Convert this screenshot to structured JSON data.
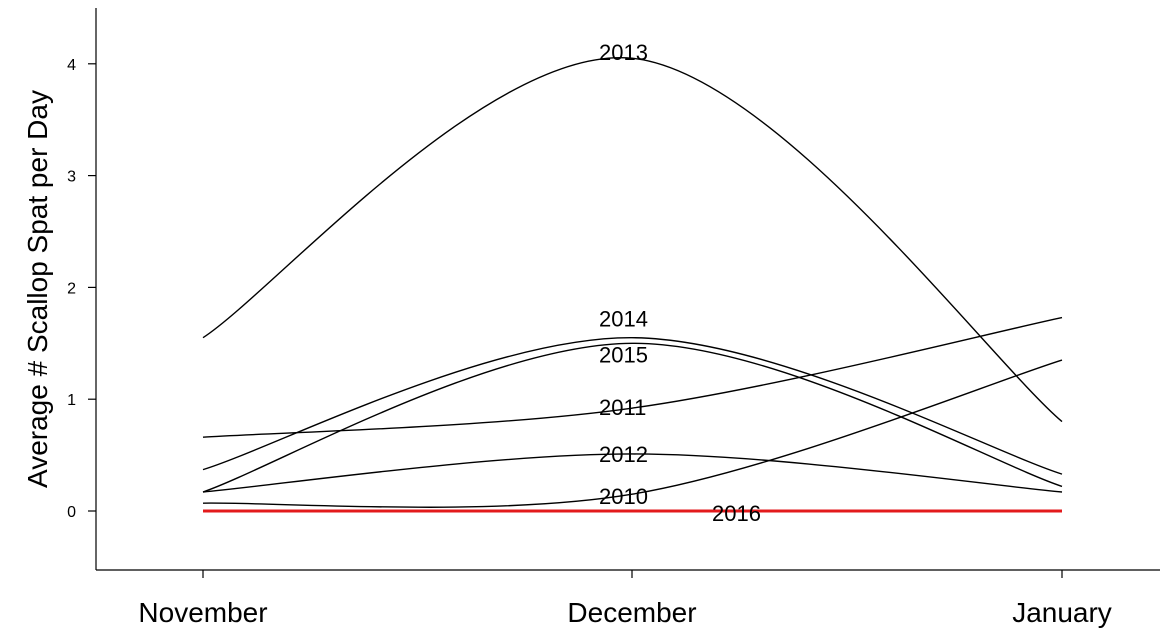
{
  "chart_data": {
    "type": "line",
    "title": "",
    "xlabel": "",
    "ylabel": "Average # Scallop Spat per Day",
    "categories": [
      "November",
      "December",
      "January"
    ],
    "yticks": [
      0,
      1,
      2,
      3,
      4
    ],
    "ylim": [
      -0.5,
      4.5
    ],
    "grid": false,
    "colors": {
      "default": "#000000",
      "highlight": "#e31a1c"
    },
    "series": [
      {
        "name": "2013",
        "values": [
          1.55,
          4.05,
          0.8
        ],
        "highlight": false
      },
      {
        "name": "2014",
        "values": [
          0.37,
          1.55,
          0.33
        ],
        "highlight": false
      },
      {
        "name": "2015",
        "values": [
          0.17,
          1.5,
          0.22
        ],
        "highlight": false
      },
      {
        "name": "2011",
        "values": [
          0.66,
          0.92,
          1.73
        ],
        "highlight": false
      },
      {
        "name": "2012",
        "values": [
          0.17,
          0.51,
          0.17
        ],
        "highlight": false
      },
      {
        "name": "2010",
        "values": [
          0.07,
          0.15,
          1.35
        ],
        "highlight": false
      },
      {
        "name": "2016",
        "values": [
          0.0,
          0.0,
          0.0
        ],
        "highlight": true
      }
    ]
  }
}
